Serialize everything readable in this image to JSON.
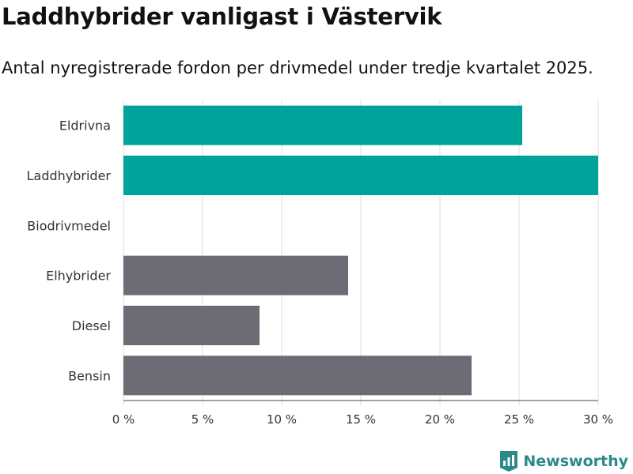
{
  "title": "Laddhybrider vanligast i Västervik",
  "subtitle": "Antal nyregistrerade fordon per drivmedel under tredje kvartalet 2025.",
  "brand": "Newsworthy",
  "colors": {
    "highlight": "#00a399",
    "base": "#6d6c74",
    "grid": "#dddddd",
    "brand": "#2a8a88"
  },
  "chart_data": {
    "type": "bar",
    "orientation": "horizontal",
    "categories": [
      "Eldrivna",
      "Laddhybrider",
      "Biodrivmedel",
      "Elhybrider",
      "Diesel",
      "Bensin"
    ],
    "values": [
      25.2,
      30.0,
      0,
      14.2,
      8.6,
      22.0
    ],
    "highlighted": [
      true,
      true,
      false,
      false,
      false,
      false
    ],
    "xlim": [
      0,
      30
    ],
    "xticks": [
      0,
      5,
      10,
      15,
      20,
      25,
      30
    ],
    "xtick_labels": [
      "0 %",
      "5 %",
      "10 %",
      "15 %",
      "20 %",
      "25 %",
      "30 %"
    ],
    "grid": true,
    "unit": "%"
  }
}
